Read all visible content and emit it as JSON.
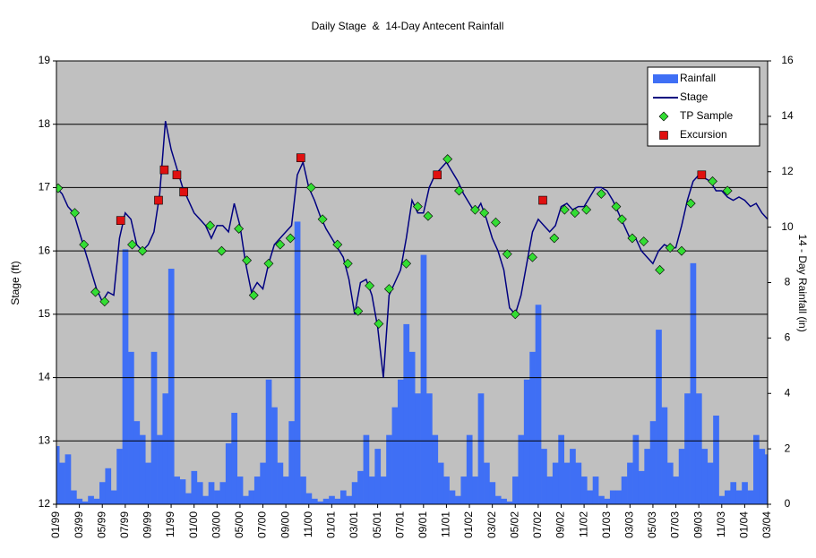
{
  "chart_data": {
    "type": "combo",
    "title": "Daily Stage  &  14-Day Antecent Rainfall",
    "y_label": "Stage (ft)",
    "y2_label": "14 - Day Rainfall (in)",
    "xlim": [
      0,
      62
    ],
    "xticks": [
      {
        "value": 0,
        "label": "01/99"
      },
      {
        "value": 2,
        "label": "03/99"
      },
      {
        "value": 4,
        "label": "05/99"
      },
      {
        "value": 6,
        "label": "07/99"
      },
      {
        "value": 8,
        "label": "09/99"
      },
      {
        "value": 10,
        "label": "11/99"
      },
      {
        "value": 12,
        "label": "01/00"
      },
      {
        "value": 14,
        "label": "03/00"
      },
      {
        "value": 16,
        "label": "05/00"
      },
      {
        "value": 18,
        "label": "07/00"
      },
      {
        "value": 20,
        "label": "09/00"
      },
      {
        "value": 22,
        "label": "11/00"
      },
      {
        "value": 24,
        "label": "01/01"
      },
      {
        "value": 26,
        "label": "03/01"
      },
      {
        "value": 28,
        "label": "05/01"
      },
      {
        "value": 30,
        "label": "07/01"
      },
      {
        "value": 32,
        "label": "09/01"
      },
      {
        "value": 34,
        "label": "11/01"
      },
      {
        "value": 36,
        "label": "01/02"
      },
      {
        "value": 38,
        "label": "03/02"
      },
      {
        "value": 40,
        "label": "05/02"
      },
      {
        "value": 42,
        "label": "07/02"
      },
      {
        "value": 44,
        "label": "09/02"
      },
      {
        "value": 46,
        "label": "11/02"
      },
      {
        "value": 48,
        "label": "01/03"
      },
      {
        "value": 50,
        "label": "03/03"
      },
      {
        "value": 52,
        "label": "05/03"
      },
      {
        "value": 54,
        "label": "07/03"
      },
      {
        "value": 56,
        "label": "09/03"
      },
      {
        "value": 58,
        "label": "11/03"
      },
      {
        "value": 60,
        "label": "01/04"
      },
      {
        "value": 62,
        "label": "03/04"
      }
    ],
    "ylim": [
      12,
      19
    ],
    "yticks": [
      12,
      13,
      14,
      15,
      16,
      17,
      18,
      19
    ],
    "y2lim": [
      0,
      16
    ],
    "y2ticks": [
      0,
      2,
      4,
      6,
      8,
      10,
      12,
      14,
      16
    ],
    "grid": true,
    "legend": "top-right",
    "x": [
      0,
      0.5,
      1,
      1.5,
      2,
      2.5,
      3,
      3.5,
      4,
      4.5,
      5,
      5.5,
      6,
      6.5,
      7,
      7.5,
      8,
      8.5,
      9,
      9.5,
      10,
      10.5,
      11,
      11.5,
      12,
      12.5,
      13,
      13.5,
      14,
      14.5,
      15,
      15.5,
      16,
      16.5,
      17,
      17.5,
      18,
      18.5,
      19,
      19.5,
      20,
      20.5,
      21,
      21.5,
      22,
      22.5,
      23,
      23.5,
      24,
      24.5,
      25,
      25.5,
      26,
      26.5,
      27,
      27.5,
      28,
      28.5,
      29,
      29.5,
      30,
      30.5,
      31,
      31.5,
      32,
      32.5,
      33,
      33.5,
      34,
      34.5,
      35,
      35.5,
      36,
      36.5,
      37,
      37.5,
      38,
      38.5,
      39,
      39.5,
      40,
      40.5,
      41,
      41.5,
      42,
      42.5,
      43,
      43.5,
      44,
      44.5,
      45,
      45.5,
      46,
      46.5,
      47,
      47.5,
      48,
      48.5,
      49,
      49.5,
      50,
      50.5,
      51,
      51.5,
      52,
      52.5,
      53,
      53.5,
      54,
      54.5,
      55,
      55.5,
      56,
      56.5,
      57,
      57.5,
      58,
      58.5,
      59,
      59.5,
      60,
      60.5,
      61,
      61.5,
      62
    ],
    "series": [
      {
        "name": "Rainfall",
        "kind": "bar",
        "axis": "y2",
        "color": "#3f6ff5",
        "values": [
          2.1,
          1.5,
          1.8,
          0.5,
          0.2,
          0.1,
          0.3,
          0.2,
          0.8,
          1.3,
          0.5,
          2.0,
          9.2,
          5.5,
          3.0,
          2.5,
          1.5,
          5.5,
          2.5,
          4.0,
          8.5,
          1.0,
          0.9,
          0.4,
          1.2,
          0.8,
          0.3,
          0.8,
          0.5,
          0.8,
          2.2,
          3.3,
          1.0,
          0.3,
          0.5,
          1.0,
          1.5,
          4.5,
          3.5,
          1.5,
          1.0,
          3.0,
          10.2,
          1.0,
          0.4,
          0.2,
          0.1,
          0.2,
          0.3,
          0.2,
          0.5,
          0.3,
          0.8,
          1.2,
          2.5,
          1.0,
          2.0,
          1.0,
          2.5,
          3.5,
          4.5,
          6.5,
          5.5,
          4.0,
          9.0,
          4.0,
          2.5,
          1.5,
          1.0,
          0.5,
          0.3,
          1.0,
          2.5,
          1.0,
          4.0,
          1.5,
          0.8,
          0.3,
          0.2,
          0.1,
          1.0,
          2.5,
          4.5,
          5.5,
          7.2,
          2.0,
          1.0,
          1.5,
          2.5,
          1.5,
          2.0,
          1.5,
          1.0,
          0.5,
          1.0,
          0.3,
          0.2,
          0.5,
          0.5,
          1.0,
          1.5,
          2.5,
          1.2,
          2.0,
          3.0,
          6.3,
          3.5,
          1.5,
          1.0,
          2.0,
          4.0,
          8.7,
          4.0,
          2.0,
          1.5,
          3.2,
          0.3,
          0.5,
          0.8,
          0.5,
          0.8,
          0.5,
          2.5,
          2.0,
          1.8
        ]
      },
      {
        "name": "Stage",
        "kind": "line",
        "color": "#000080",
        "values": [
          17.0,
          16.9,
          16.7,
          16.6,
          16.3,
          16.0,
          15.7,
          15.4,
          15.2,
          15.35,
          15.3,
          16.2,
          16.6,
          16.5,
          16.1,
          16.0,
          16.1,
          16.3,
          16.9,
          18.05,
          17.6,
          17.3,
          17.0,
          16.8,
          16.6,
          16.5,
          16.4,
          16.2,
          16.4,
          16.4,
          16.3,
          16.75,
          16.4,
          15.8,
          15.35,
          15.5,
          15.4,
          15.8,
          16.1,
          16.2,
          16.3,
          16.4,
          17.2,
          17.4,
          17.0,
          16.8,
          16.55,
          16.35,
          16.2,
          16.05,
          15.9,
          15.55,
          15.0,
          15.5,
          15.55,
          15.3,
          14.8,
          14.0,
          15.3,
          15.5,
          15.7,
          16.2,
          16.8,
          16.6,
          16.6,
          17.0,
          17.2,
          17.3,
          17.4,
          17.25,
          17.1,
          16.9,
          16.75,
          16.6,
          16.75,
          16.5,
          16.2,
          16.0,
          15.7,
          15.1,
          15.0,
          15.3,
          15.8,
          16.3,
          16.5,
          16.4,
          16.3,
          16.4,
          16.7,
          16.75,
          16.65,
          16.7,
          16.7,
          16.85,
          17.0,
          17.0,
          16.95,
          16.8,
          16.6,
          16.4,
          16.2,
          16.2,
          16.0,
          15.9,
          15.8,
          16.0,
          16.1,
          16.05,
          16.05,
          16.4,
          16.8,
          17.1,
          17.2,
          17.15,
          17.1,
          16.95,
          16.95,
          16.85,
          16.8,
          16.85,
          16.8,
          16.7,
          16.75,
          16.6,
          16.5
        ]
      },
      {
        "name": "TP Sample",
        "kind": "scatter",
        "marker": "diamond",
        "color": "#33dd33",
        "x": [
          0.15,
          1.6,
          2.4,
          3.4,
          4.2,
          6.6,
          7.5,
          13.4,
          14.4,
          15.9,
          16.6,
          17.2,
          18.5,
          19.5,
          20.4,
          22.2,
          23.2,
          24.5,
          25.4,
          26.3,
          27.3,
          28.1,
          29.0,
          30.5,
          31.5,
          32.4,
          34.1,
          35.1,
          36.5,
          37.3,
          38.3,
          39.3,
          40.0,
          41.5,
          43.4,
          44.3,
          45.2,
          46.2,
          47.5,
          48.8,
          49.3,
          50.2,
          51.2,
          52.6,
          53.5,
          54.5,
          55.3,
          57.2,
          58.5
        ],
        "values": [
          16.99,
          16.6,
          16.1,
          15.35,
          15.2,
          16.1,
          16.0,
          16.4,
          16.0,
          16.35,
          15.85,
          15.3,
          15.8,
          16.1,
          16.2,
          17.0,
          16.5,
          16.1,
          15.8,
          15.05,
          15.45,
          14.85,
          15.4,
          15.8,
          16.7,
          16.55,
          17.45,
          16.95,
          16.65,
          16.6,
          16.45,
          15.95,
          15.0,
          15.9,
          16.2,
          16.65,
          16.6,
          16.65,
          16.9,
          16.7,
          16.5,
          16.2,
          16.15,
          15.7,
          16.05,
          16.0,
          16.75,
          17.1,
          16.95
        ]
      },
      {
        "name": "Excursion",
        "kind": "scatter",
        "marker": "square",
        "color": "#e01010",
        "x": [
          5.6,
          8.9,
          9.4,
          10.5,
          11.1,
          21.3,
          33.2,
          42.4,
          56.25
        ],
        "values": [
          16.48,
          16.8,
          17.28,
          17.2,
          16.93,
          17.47,
          17.2,
          16.8,
          17.2
        ]
      }
    ]
  }
}
